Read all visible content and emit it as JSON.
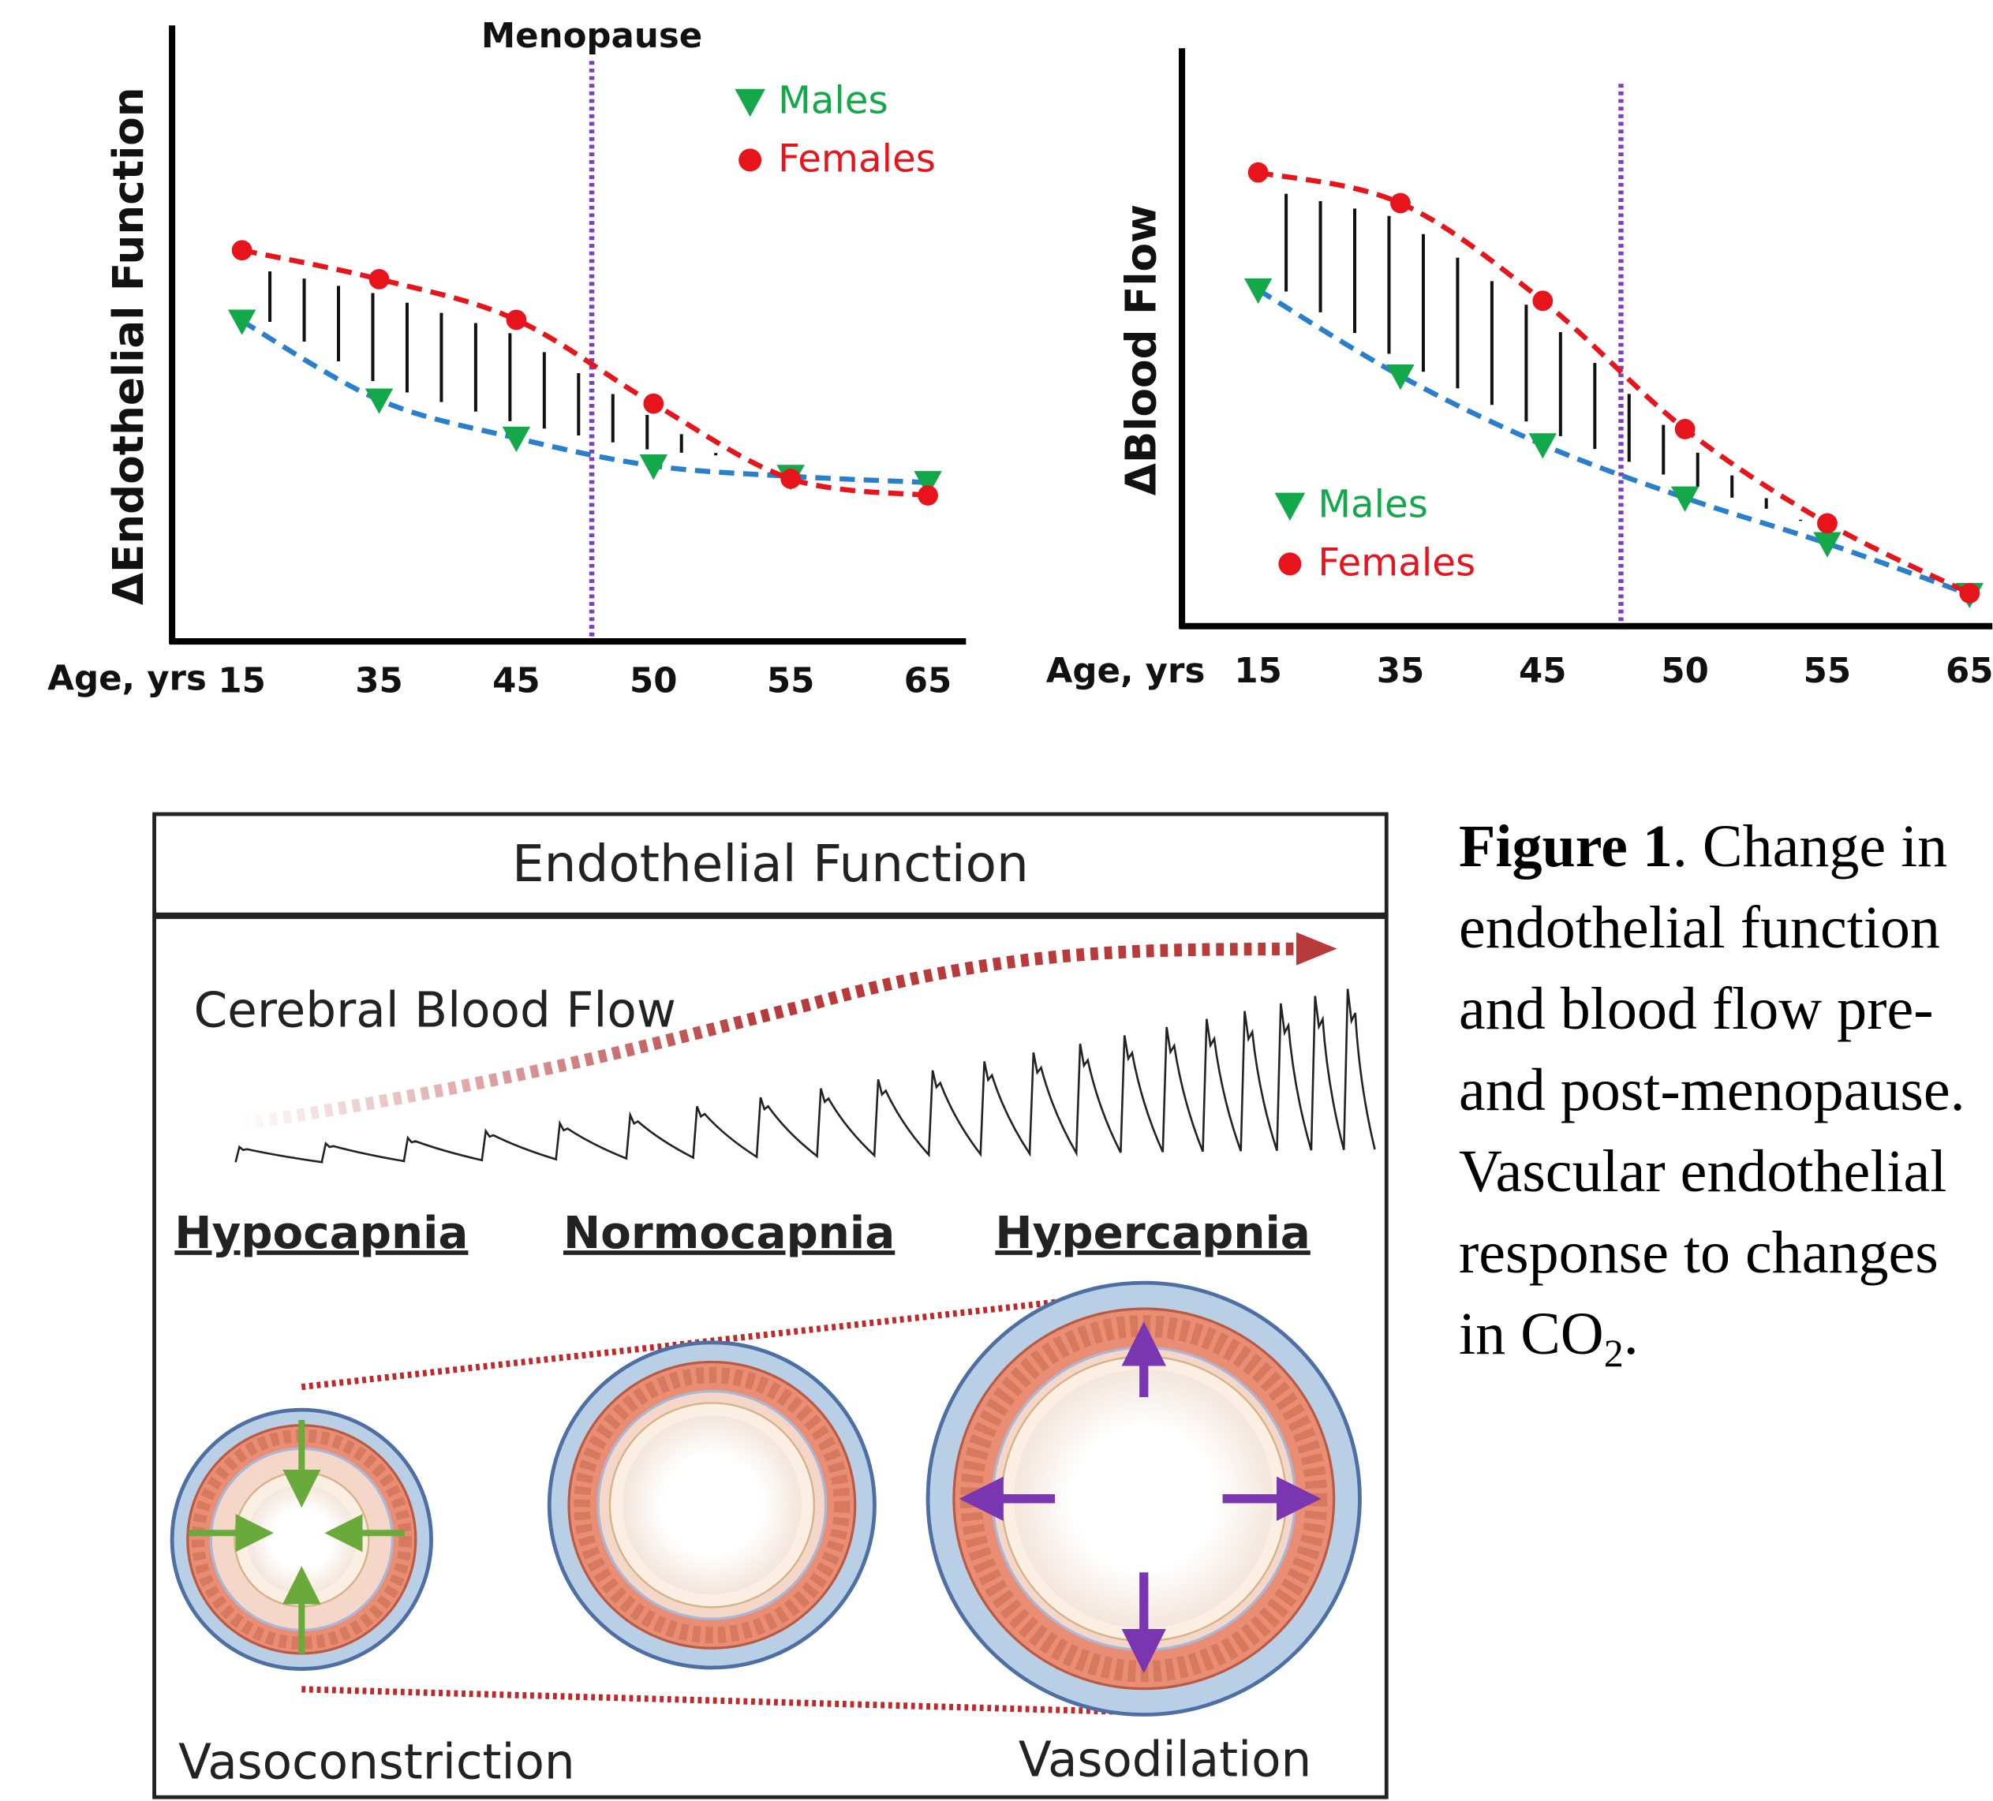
{
  "chart_data": [
    {
      "type": "line",
      "annotation": "Menopause",
      "ylabel": "ΔEndothelial Function",
      "xlabel": "Age, yrs",
      "categories": [
        "15",
        "35",
        "45",
        "50",
        "55",
        "65"
      ],
      "ylim": [
        0,
        100
      ],
      "legend": "upper right",
      "series": [
        {
          "name": "Males",
          "color": "#13a84a",
          "line_color": "#2a7fcc",
          "marker": "triangle",
          "values": [
            52,
            39.2,
            33,
            28.5,
            26.8,
            25.8
          ]
        },
        {
          "name": "Females",
          "color": "#e8141b",
          "line_color": "#e8141b",
          "marker": "circle",
          "values": [
            63.5,
            58.8,
            52.2,
            38.6,
            26.4,
            23.7
          ]
        }
      ]
    },
    {
      "type": "line",
      "ylabel": "ΔBlood Flow",
      "xlabel": "Age, yrs",
      "categories": [
        "15",
        "35",
        "45",
        "50",
        "55",
        "65"
      ],
      "ylim": [
        0,
        100
      ],
      "legend": "lower left",
      "series": [
        {
          "name": "Males",
          "color": "#13a84a",
          "line_color": "#2a7fcc",
          "marker": "triangle",
          "values": [
            58.2,
            43.3,
            31.4,
            22.2,
            14.3,
            5.5
          ]
        },
        {
          "name": "Females",
          "color": "#e8141b",
          "line_color": "#e8141b",
          "marker": "circle",
          "values": [
            78.5,
            73.2,
            56.3,
            34.1,
            17.8,
            5.7
          ]
        }
      ]
    }
  ],
  "diagram": {
    "title": "Endothelial Function",
    "flow_label": "Cerebral Blood Flow",
    "states": [
      "Hypocapnia",
      "Normocapnia",
      "Hypercapnia"
    ],
    "left_label": "Vasoconstriction",
    "right_label": "Vasodilation"
  },
  "caption": {
    "label": "Figure 1",
    "text": ". Change in endothelial function and blood flow pre- and post-menopause. Vascular endothelial response to changes in CO",
    "subscript": "2",
    "end": "."
  }
}
